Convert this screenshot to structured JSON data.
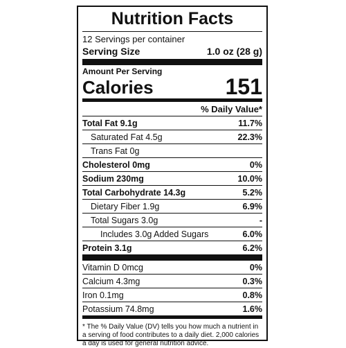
{
  "title": "Nutrition Facts",
  "servings_per_container": "12 Servings per container",
  "serving_size_label": "Serving Size",
  "serving_size_value": "1.0 oz (28 g)",
  "amount_per_serving": "Amount Per Serving",
  "calories_label": "Calories",
  "calories_value": "151",
  "daily_value_header": "% Daily Value*",
  "nutrients": [
    {
      "name": "Total Fat 9.1g",
      "pct": "11.7%"
    },
    {
      "name": "Saturated Fat 4.5g",
      "pct": "22.3%"
    },
    {
      "name": "Trans Fat 0g",
      "pct": ""
    },
    {
      "name": "Cholesterol 0mg",
      "pct": "0%"
    },
    {
      "name": "Sodium 230mg",
      "pct": "10.0%"
    },
    {
      "name": "Total Carbohydrate 14.3g",
      "pct": "5.2%"
    },
    {
      "name": "Dietary Fiber 1.9g",
      "pct": "6.9%"
    },
    {
      "name": "Total Sugars 3.0g",
      "pct": "-"
    },
    {
      "name": "Includes 3.0g Added Sugars",
      "pct": "6.0%"
    },
    {
      "name": "Protein 3.1g",
      "pct": "6.2%"
    }
  ],
  "vitamins": [
    {
      "name": "Vitamin D 0mcg",
      "pct": "0%"
    },
    {
      "name": "Calcium 4.3mg",
      "pct": "0.3%"
    },
    {
      "name": "Iron 0.1mg",
      "pct": "0.8%"
    },
    {
      "name": "Potassium 74.8mg",
      "pct": "1.6%"
    }
  ],
  "footnote": "* The % Daily Value (DV) tells you how much a nutrient in a serving of food contributes to a daily diet. 2,000 calories a day is used for general nutrition advice."
}
